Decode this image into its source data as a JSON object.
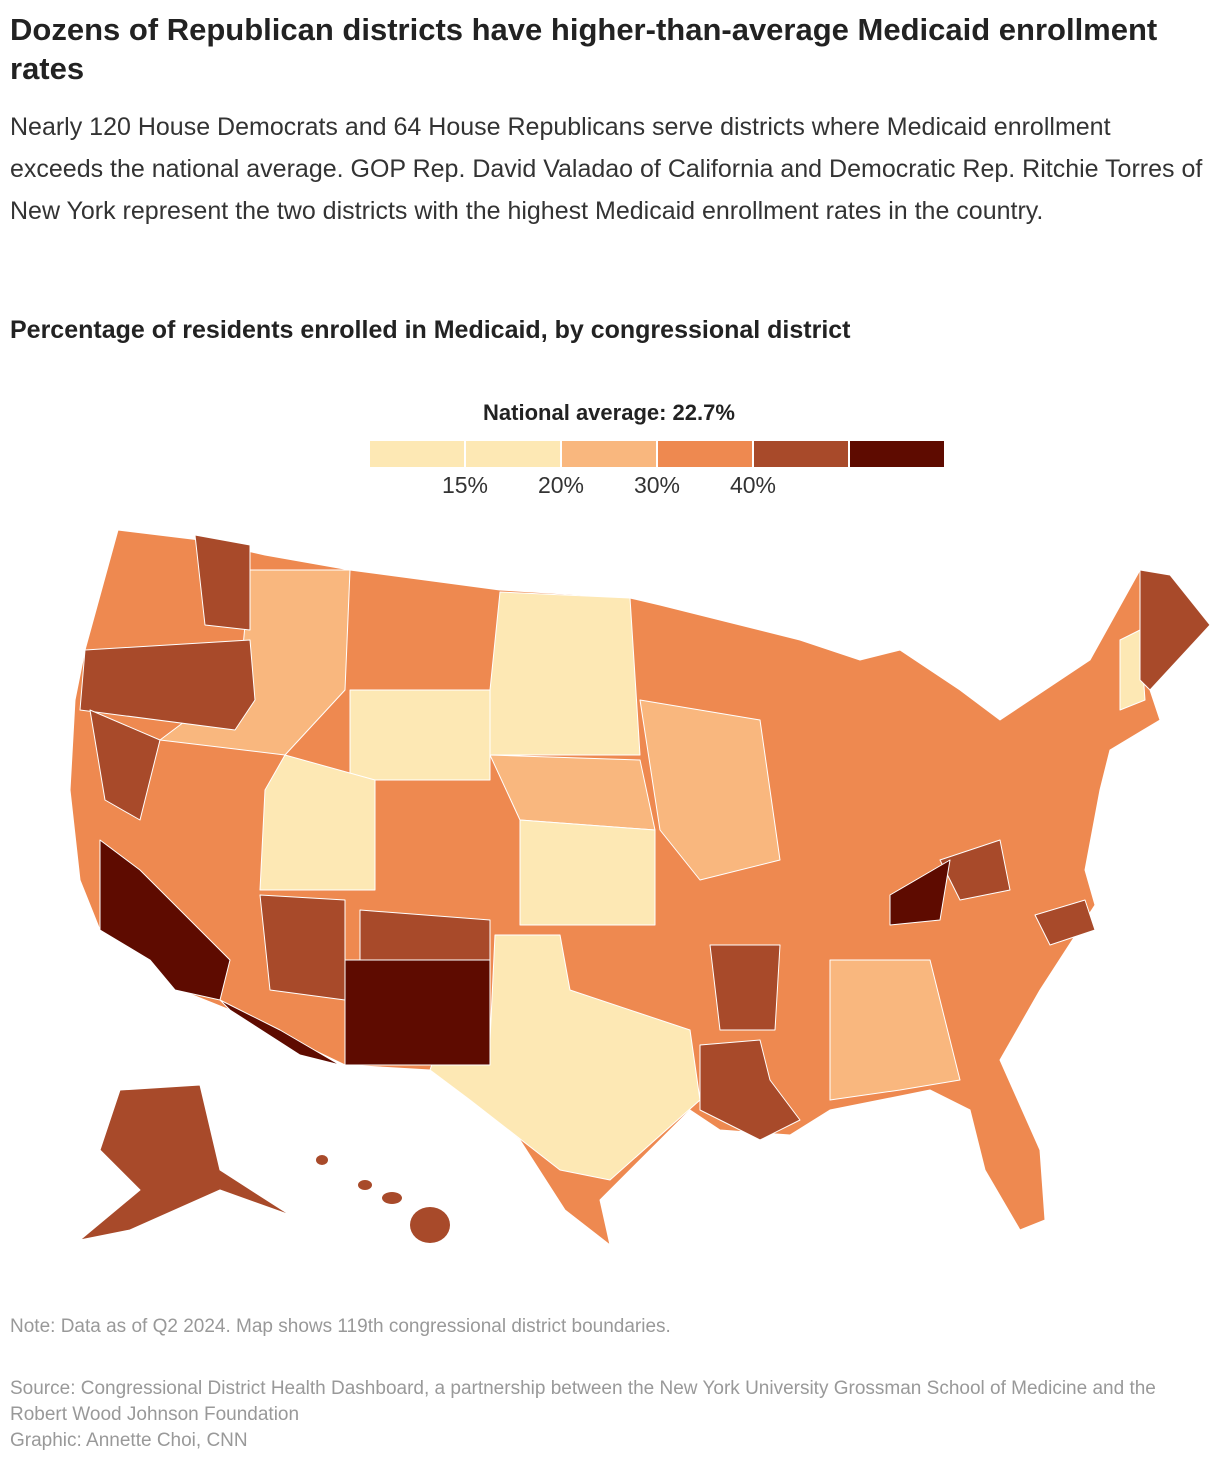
{
  "header": {
    "title": "Dozens of Republican districts have higher-than-average Medicaid enrollment rates",
    "subtitle": "Nearly 120 House Democrats and 64 House Republicans serve districts where Medicaid enrollment exceeds the national average. GOP Rep. David Valadao of California and Democratic Rep. Ritchie Torres of New York represent the two districts with the highest Medicaid enrollment rates in the country."
  },
  "chart_data": {
    "type": "choropleth",
    "title": "Percentage of residents enrolled in Medicaid, by congressional district",
    "legend_title": "National average: 22.7%",
    "colors": [
      "#fde8b4",
      "#f9b77e",
      "#ee8950",
      "#a84a2a",
      "#5e0b00"
    ],
    "ticks": [
      {
        "value": 15,
        "label": "15%"
      },
      {
        "value": 20,
        "label": "20%"
      },
      {
        "value": 30,
        "label": "30%"
      },
      {
        "value": 40,
        "label": "40%"
      }
    ]
  },
  "footer": {
    "note": "Note: Data as of Q2 2024. Map shows 119th congressional district boundaries.",
    "source": "Source: Congressional District Health Dashboard, a partnership between the New York University Grossman School of Medicine and the Robert Wood Johnson Foundation",
    "credit": "Graphic: Annette Choi, CNN"
  }
}
